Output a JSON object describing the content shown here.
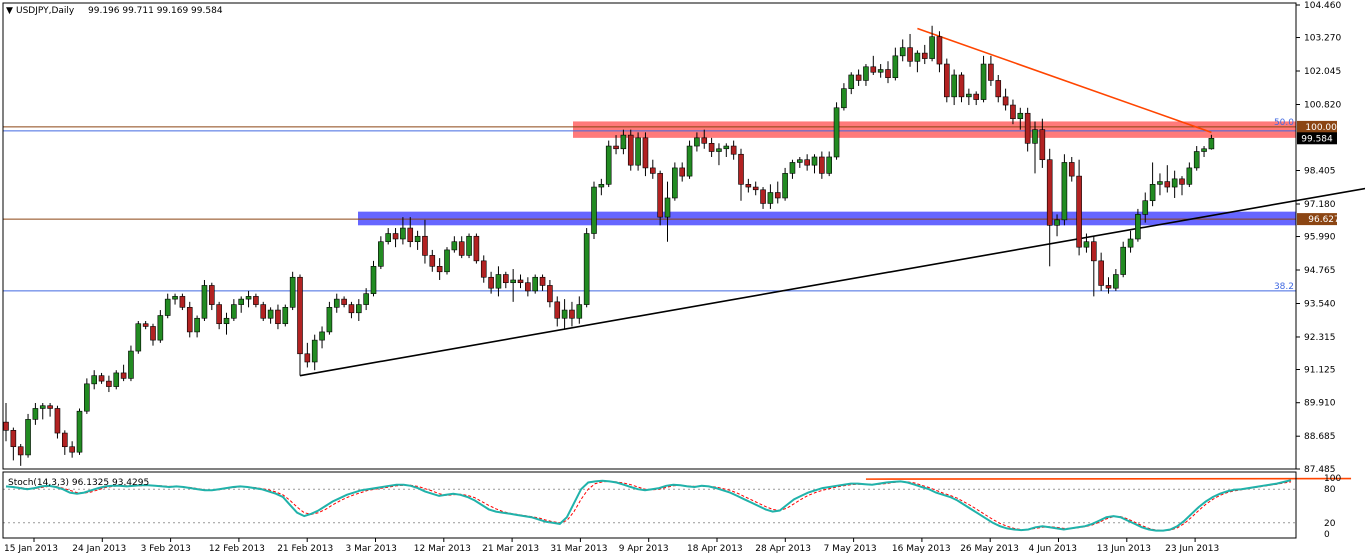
{
  "chart_data": {
    "type": "candlestick",
    "title": "USDJPY,Daily",
    "ohlc_header": "99.196 99.711 99.169 99.584",
    "current_price_label": "99.584",
    "y_ticks": [
      "104.460",
      "103.270",
      "102.045",
      "100.820",
      "99.584",
      "98.405",
      "97.180",
      "95.990",
      "94.765",
      "93.540",
      "92.315",
      "91.125",
      "89.910",
      "88.685",
      "87.485"
    ],
    "y_range": [
      87.485,
      104.46
    ],
    "x_ticks": [
      "15 Jan 2013",
      "24 Jan 2013",
      "3 Feb 2013",
      "12 Feb 2013",
      "21 Feb 2013",
      "3 Mar 2013",
      "12 Mar 2013",
      "21 Mar 2013",
      "31 Mar 2013",
      "9 Apr 2013",
      "18 Apr 2013",
      "28 Apr 2013",
      "7 May 2013",
      "16 May 2013",
      "26 May 2013",
      "4 Jun 2013",
      "13 Jun 2013",
      "23 Jun 2013"
    ],
    "horizontal_levels": [
      {
        "price": 100.0,
        "label": "100.000",
        "fib_label": "50.0",
        "color": "#8B4513"
      },
      {
        "price": 96.627,
        "label": "96.627",
        "color": "#8B4513"
      },
      {
        "price": 94.0,
        "fib_label": "38.2",
        "color": "#4169E1"
      }
    ],
    "zones": [
      {
        "from": 99.6,
        "to": 100.2,
        "color": "#ff4d4d"
      },
      {
        "from": 96.4,
        "to": 96.9,
        "color": "#3333ff"
      }
    ],
    "trendlines": [
      {
        "from": {
          "bar": 40,
          "price": 90.9
        },
        "to": {
          "bar": 185,
          "price": 97.75
        },
        "color": "#000000"
      },
      {
        "from": {
          "bar": 124,
          "price": 103.6
        },
        "to": {
          "bar": 164,
          "price": 99.8
        },
        "color": "#ff4500"
      }
    ],
    "candles": [
      [
        89.2,
        89.9,
        88.5,
        88.9
      ],
      [
        88.9,
        89.0,
        87.8,
        88.3
      ],
      [
        88.3,
        88.4,
        87.6,
        88.0
      ],
      [
        88.0,
        89.5,
        87.9,
        89.3
      ],
      [
        89.3,
        89.9,
        89.1,
        89.7
      ],
      [
        89.7,
        89.9,
        89.3,
        89.8
      ],
      [
        89.8,
        89.9,
        89.4,
        89.7
      ],
      [
        89.7,
        89.8,
        88.6,
        88.8
      ],
      [
        88.8,
        88.9,
        88.0,
        88.3
      ],
      [
        88.3,
        88.5,
        87.9,
        88.1
      ],
      [
        88.1,
        89.7,
        88.0,
        89.6
      ],
      [
        89.6,
        90.8,
        89.5,
        90.6
      ],
      [
        90.6,
        91.1,
        90.4,
        90.9
      ],
      [
        90.9,
        91.0,
        90.6,
        90.7
      ],
      [
        90.7,
        90.9,
        90.3,
        90.5
      ],
      [
        90.5,
        91.1,
        90.4,
        91.0
      ],
      [
        91.0,
        91.3,
        90.7,
        90.8
      ],
      [
        90.8,
        92.0,
        90.7,
        91.8
      ],
      [
        91.8,
        92.9,
        91.7,
        92.8
      ],
      [
        92.8,
        92.9,
        92.6,
        92.7
      ],
      [
        92.7,
        92.8,
        92.0,
        92.2
      ],
      [
        92.2,
        93.3,
        92.1,
        93.1
      ],
      [
        93.1,
        93.9,
        93.0,
        93.7
      ],
      [
        93.7,
        93.9,
        93.5,
        93.8
      ],
      [
        93.8,
        93.9,
        93.3,
        93.4
      ],
      [
        93.4,
        93.6,
        92.3,
        92.5
      ],
      [
        92.5,
        93.1,
        92.3,
        93.0
      ],
      [
        93.0,
        94.4,
        92.9,
        94.2
      ],
      [
        94.2,
        94.3,
        93.3,
        93.5
      ],
      [
        93.5,
        93.6,
        92.6,
        92.8
      ],
      [
        92.8,
        93.2,
        92.4,
        93.0
      ],
      [
        93.0,
        93.7,
        92.9,
        93.5
      ],
      [
        93.5,
        93.8,
        93.2,
        93.7
      ],
      [
        93.7,
        94.0,
        93.4,
        93.8
      ],
      [
        93.8,
        93.9,
        93.4,
        93.5
      ],
      [
        93.5,
        93.6,
        92.9,
        93.0
      ],
      [
        93.0,
        93.4,
        92.8,
        93.3
      ],
      [
        93.3,
        93.5,
        92.6,
        92.8
      ],
      [
        92.8,
        93.5,
        92.7,
        93.4
      ],
      [
        93.4,
        94.7,
        93.3,
        94.5
      ],
      [
        94.5,
        94.6,
        90.9,
        91.7
      ],
      [
        91.7,
        92.1,
        91.2,
        91.4
      ],
      [
        91.4,
        92.4,
        91.1,
        92.2
      ],
      [
        92.2,
        92.7,
        91.9,
        92.5
      ],
      [
        92.5,
        93.6,
        92.4,
        93.4
      ],
      [
        93.4,
        93.9,
        93.2,
        93.7
      ],
      [
        93.7,
        93.8,
        93.4,
        93.5
      ],
      [
        93.5,
        93.6,
        93.0,
        93.2
      ],
      [
        93.2,
        93.7,
        92.9,
        93.5
      ],
      [
        93.5,
        94.1,
        93.3,
        93.9
      ],
      [
        93.9,
        95.1,
        93.8,
        94.9
      ],
      [
        94.9,
        96.0,
        94.8,
        95.8
      ],
      [
        95.8,
        96.3,
        95.7,
        96.1
      ],
      [
        96.1,
        96.3,
        95.6,
        95.9
      ],
      [
        95.9,
        96.7,
        95.7,
        96.3
      ],
      [
        96.3,
        96.7,
        95.6,
        95.8
      ],
      [
        95.8,
        96.2,
        95.5,
        96.0
      ],
      [
        96.0,
        96.6,
        95.0,
        95.3
      ],
      [
        95.3,
        95.5,
        94.7,
        94.9
      ],
      [
        94.9,
        95.2,
        94.4,
        94.7
      ],
      [
        94.7,
        95.6,
        94.6,
        95.5
      ],
      [
        95.5,
        96.0,
        95.4,
        95.8
      ],
      [
        95.8,
        96.0,
        95.2,
        95.3
      ],
      [
        95.3,
        96.1,
        95.2,
        96.0
      ],
      [
        96.0,
        96.1,
        95.0,
        95.1
      ],
      [
        95.1,
        95.3,
        94.3,
        94.5
      ],
      [
        94.5,
        94.7,
        93.9,
        94.1
      ],
      [
        94.1,
        94.9,
        93.8,
        94.6
      ],
      [
        94.6,
        94.7,
        94.1,
        94.3
      ],
      [
        94.3,
        94.8,
        93.6,
        94.4
      ],
      [
        94.4,
        94.6,
        94.1,
        94.3
      ],
      [
        94.3,
        94.5,
        93.8,
        94.0
      ],
      [
        94.0,
        94.6,
        93.9,
        94.5
      ],
      [
        94.5,
        94.6,
        94.0,
        94.2
      ],
      [
        94.2,
        94.4,
        93.4,
        93.6
      ],
      [
        93.6,
        93.8,
        92.7,
        93.0
      ],
      [
        93.0,
        93.7,
        92.6,
        93.3
      ],
      [
        93.3,
        93.6,
        92.7,
        93.0
      ],
      [
        93.0,
        93.8,
        92.8,
        93.5
      ],
      [
        93.5,
        96.3,
        93.4,
        96.1
      ],
      [
        96.1,
        98.0,
        95.9,
        97.8
      ],
      [
        97.8,
        98.1,
        97.5,
        97.9
      ],
      [
        97.9,
        99.5,
        97.8,
        99.3
      ],
      [
        99.3,
        99.7,
        99.0,
        99.2
      ],
      [
        99.2,
        99.9,
        99.0,
        99.7
      ],
      [
        99.7,
        99.9,
        98.4,
        98.6
      ],
      [
        98.6,
        99.8,
        98.4,
        99.6
      ],
      [
        99.6,
        99.8,
        98.2,
        98.5
      ],
      [
        98.5,
        98.8,
        98.1,
        98.3
      ],
      [
        98.3,
        98.4,
        96.4,
        96.7
      ],
      [
        96.7,
        98.0,
        95.8,
        97.4
      ],
      [
        97.4,
        98.7,
        97.3,
        98.5
      ],
      [
        98.5,
        98.7,
        98.0,
        98.2
      ],
      [
        98.2,
        99.5,
        98.1,
        99.3
      ],
      [
        99.3,
        99.8,
        99.1,
        99.6
      ],
      [
        99.6,
        99.9,
        99.2,
        99.4
      ],
      [
        99.4,
        99.6,
        98.9,
        99.1
      ],
      [
        99.1,
        99.4,
        98.6,
        99.2
      ],
      [
        99.2,
        99.4,
        98.9,
        99.3
      ],
      [
        99.3,
        99.5,
        98.8,
        99.0
      ],
      [
        99.0,
        99.2,
        97.3,
        97.9
      ],
      [
        97.9,
        98.1,
        97.6,
        97.8
      ],
      [
        97.8,
        98.0,
        97.5,
        97.7
      ],
      [
        97.7,
        97.8,
        97.0,
        97.2
      ],
      [
        97.2,
        97.9,
        97.0,
        97.6
      ],
      [
        97.6,
        98.0,
        97.2,
        97.4
      ],
      [
        97.4,
        98.5,
        97.3,
        98.3
      ],
      [
        98.3,
        98.8,
        98.1,
        98.7
      ],
      [
        98.7,
        98.9,
        98.5,
        98.8
      ],
      [
        98.8,
        99.0,
        98.4,
        98.6
      ],
      [
        98.6,
        99.0,
        98.3,
        98.9
      ],
      [
        98.9,
        99.1,
        98.1,
        98.3
      ],
      [
        98.3,
        99.1,
        98.2,
        98.9
      ],
      [
        98.9,
        100.9,
        98.8,
        100.7
      ],
      [
        100.7,
        101.6,
        100.6,
        101.4
      ],
      [
        101.4,
        102.0,
        101.2,
        101.9
      ],
      [
        101.9,
        102.1,
        101.5,
        101.7
      ],
      [
        101.7,
        102.3,
        101.5,
        102.2
      ],
      [
        102.2,
        102.6,
        101.9,
        102.0
      ],
      [
        102.0,
        102.3,
        101.8,
        102.1
      ],
      [
        102.1,
        102.4,
        101.6,
        101.8
      ],
      [
        101.8,
        102.9,
        101.7,
        102.6
      ],
      [
        102.6,
        103.2,
        102.4,
        102.9
      ],
      [
        102.9,
        103.4,
        102.2,
        102.4
      ],
      [
        102.4,
        102.8,
        102.0,
        102.7
      ],
      [
        102.7,
        103.0,
        102.3,
        102.5
      ],
      [
        102.5,
        103.7,
        102.4,
        103.3
      ],
      [
        103.3,
        103.5,
        102.0,
        102.3
      ],
      [
        102.3,
        102.5,
        100.9,
        101.1
      ],
      [
        101.1,
        102.1,
        100.8,
        101.9
      ],
      [
        101.9,
        102.0,
        100.9,
        101.1
      ],
      [
        101.1,
        101.4,
        100.8,
        101.2
      ],
      [
        101.2,
        101.3,
        100.8,
        101.0
      ],
      [
        101.0,
        102.6,
        100.9,
        102.3
      ],
      [
        102.3,
        102.6,
        101.5,
        101.7
      ],
      [
        101.7,
        101.9,
        100.9,
        101.1
      ],
      [
        101.1,
        101.4,
        100.6,
        100.8
      ],
      [
        100.8,
        101.0,
        100.1,
        100.3
      ],
      [
        100.3,
        100.7,
        99.9,
        100.5
      ],
      [
        100.5,
        100.7,
        99.1,
        99.4
      ],
      [
        99.4,
        100.2,
        98.3,
        99.9
      ],
      [
        99.9,
        100.3,
        98.5,
        98.8
      ],
      [
        98.8,
        99.2,
        94.9,
        96.4
      ],
      [
        96.4,
        96.8,
        96.0,
        96.6
      ],
      [
        96.6,
        99.0,
        96.4,
        98.7
      ],
      [
        98.7,
        98.9,
        98.0,
        98.2
      ],
      [
        98.2,
        98.8,
        95.3,
        95.6
      ],
      [
        95.6,
        96.1,
        95.4,
        95.8
      ],
      [
        95.8,
        96.0,
        93.8,
        95.1
      ],
      [
        95.1,
        95.4,
        94.0,
        94.2
      ],
      [
        94.2,
        94.5,
        93.9,
        94.1
      ],
      [
        94.1,
        94.8,
        94.0,
        94.6
      ],
      [
        94.6,
        95.8,
        94.5,
        95.6
      ],
      [
        95.6,
        96.2,
        95.4,
        95.9
      ],
      [
        95.9,
        97.0,
        95.8,
        96.8
      ],
      [
        96.8,
        97.6,
        96.5,
        97.3
      ],
      [
        97.3,
        98.7,
        97.1,
        97.9
      ],
      [
        97.9,
        98.3,
        97.5,
        98.0
      ],
      [
        98.0,
        98.6,
        97.6,
        97.8
      ],
      [
        97.8,
        98.4,
        97.4,
        98.1
      ],
      [
        98.1,
        98.2,
        97.5,
        97.9
      ],
      [
        97.9,
        98.7,
        97.8,
        98.5
      ],
      [
        98.5,
        99.3,
        98.4,
        99.1
      ],
      [
        99.1,
        99.3,
        98.9,
        99.2
      ],
      [
        99.196,
        99.711,
        99.169,
        99.584
      ]
    ],
    "stochastic": {
      "label": "Stoch(14,3,3) 96.1325 93.4295",
      "y_ticks": [
        "100",
        "80",
        "20",
        "0"
      ],
      "y_range": [
        0,
        100
      ],
      "levels": [
        80,
        20
      ],
      "main": [
        85,
        84,
        82,
        80,
        82,
        85,
        86,
        84,
        80,
        74,
        72,
        74,
        78,
        82,
        85,
        86,
        86,
        85,
        86,
        87,
        87,
        86,
        85,
        84,
        85,
        84,
        82,
        80,
        78,
        78,
        80,
        82,
        84,
        85,
        84,
        82,
        80,
        76,
        72,
        66,
        52,
        38,
        32,
        36,
        42,
        50,
        58,
        64,
        70,
        74,
        78,
        80,
        82,
        84,
        86,
        88,
        88,
        86,
        82,
        76,
        72,
        68,
        70,
        72,
        70,
        66,
        60,
        52,
        44,
        40,
        38,
        36,
        34,
        32,
        30,
        26,
        22,
        20,
        18,
        30,
        55,
        80,
        92,
        94,
        95,
        94,
        92,
        88,
        84,
        80,
        78,
        80,
        82,
        86,
        88,
        87,
        85,
        84,
        86,
        85,
        82,
        78,
        74,
        68,
        62,
        56,
        50,
        44,
        40,
        42,
        52,
        62,
        68,
        74,
        78,
        82,
        84,
        86,
        88,
        90,
        90,
        89,
        88,
        90,
        92,
        93,
        94,
        92,
        88,
        84,
        80,
        74,
        70,
        66,
        60,
        52,
        44,
        36,
        28,
        20,
        14,
        10,
        8,
        7,
        8,
        12,
        14,
        12,
        10,
        8,
        10,
        12,
        14,
        18,
        24,
        30,
        32,
        30,
        24,
        18,
        12,
        8,
        6,
        6,
        8,
        14,
        24,
        36,
        48,
        58,
        66,
        72,
        76,
        79,
        80,
        82,
        84,
        86,
        88,
        90,
        93,
        96
      ],
      "signal": [
        84,
        84,
        83,
        81,
        81,
        83,
        85,
        85,
        82,
        78,
        74,
        73,
        75,
        79,
        83,
        85,
        86,
        86,
        86,
        86,
        87,
        86,
        86,
        85,
        85,
        84,
        83,
        81,
        79,
        78,
        79,
        81,
        83,
        84,
        84,
        83,
        81,
        79,
        75,
        70,
        60,
        48,
        38,
        35,
        38,
        44,
        52,
        59,
        65,
        70,
        74,
        78,
        80,
        82,
        84,
        86,
        87,
        87,
        85,
        81,
        77,
        72,
        69,
        70,
        71,
        69,
        65,
        58,
        51,
        45,
        40,
        37,
        35,
        33,
        31,
        29,
        25,
        22,
        20,
        24,
        40,
        62,
        80,
        90,
        93,
        94,
        93,
        91,
        88,
        84,
        80,
        79,
        80,
        83,
        86,
        87,
        86,
        85,
        85,
        85,
        84,
        81,
        78,
        73,
        67,
        61,
        55,
        49,
        44,
        42,
        46,
        54,
        62,
        69,
        74,
        78,
        81,
        84,
        86,
        88,
        89,
        89,
        89,
        89,
        90,
        92,
        93,
        93,
        91,
        87,
        83,
        78,
        73,
        69,
        64,
        57,
        50,
        42,
        34,
        26,
        19,
        14,
        10,
        8,
        8,
        10,
        12,
        13,
        12,
        10,
        10,
        11,
        13,
        16,
        21,
        27,
        31,
        31,
        27,
        21,
        15,
        10,
        7,
        6,
        7,
        11,
        19,
        30,
        42,
        53,
        62,
        69,
        74,
        77,
        79,
        81,
        83,
        85,
        87,
        89,
        91,
        93
      ],
      "divergence_line": {
        "from": {
          "bar": 117,
          "value": 98
        },
        "to": {
          "bar": 183,
          "value": 99
        },
        "color": "#ff4500"
      }
    }
  }
}
